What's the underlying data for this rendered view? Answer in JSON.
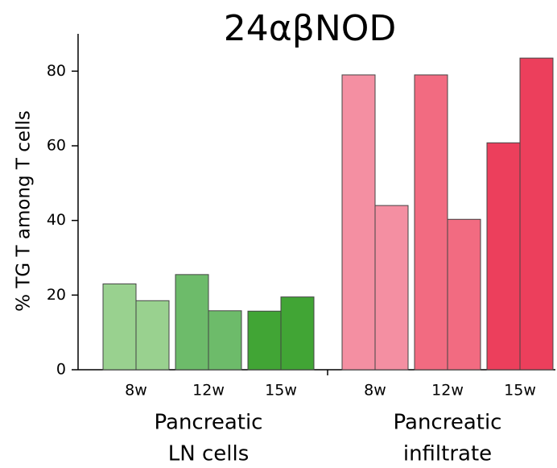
{
  "chart_data": {
    "type": "bar",
    "title": "24αβNOD",
    "y_label": "% TG T among T cells",
    "ylim": [
      0,
      90
    ],
    "yticks": [
      0,
      20,
      40,
      60,
      80
    ],
    "groups": [
      {
        "label": [
          "Pancreatic",
          "LN cells"
        ],
        "categories": [
          {
            "label": "8w",
            "color": "#99d18f",
            "values": [
              23,
              18.5
            ]
          },
          {
            "label": "12w",
            "color": "#6dbb6a",
            "values": [
              25.5,
              15.8
            ]
          },
          {
            "label": "15w",
            "color": "#41a535",
            "values": [
              15.7,
              19.5
            ]
          }
        ]
      },
      {
        "label": [
          "Pancreatic",
          "infiltrate"
        ],
        "categories": [
          {
            "label": "8w",
            "color": "#f48fa2",
            "values": [
              79,
              44
            ]
          },
          {
            "label": "12w",
            "color": "#f26b81",
            "values": [
              79,
              40.3
            ]
          },
          {
            "label": "15w",
            "color": "#ec3f5c",
            "values": [
              60.8,
              83.5
            ]
          }
        ]
      }
    ]
  }
}
